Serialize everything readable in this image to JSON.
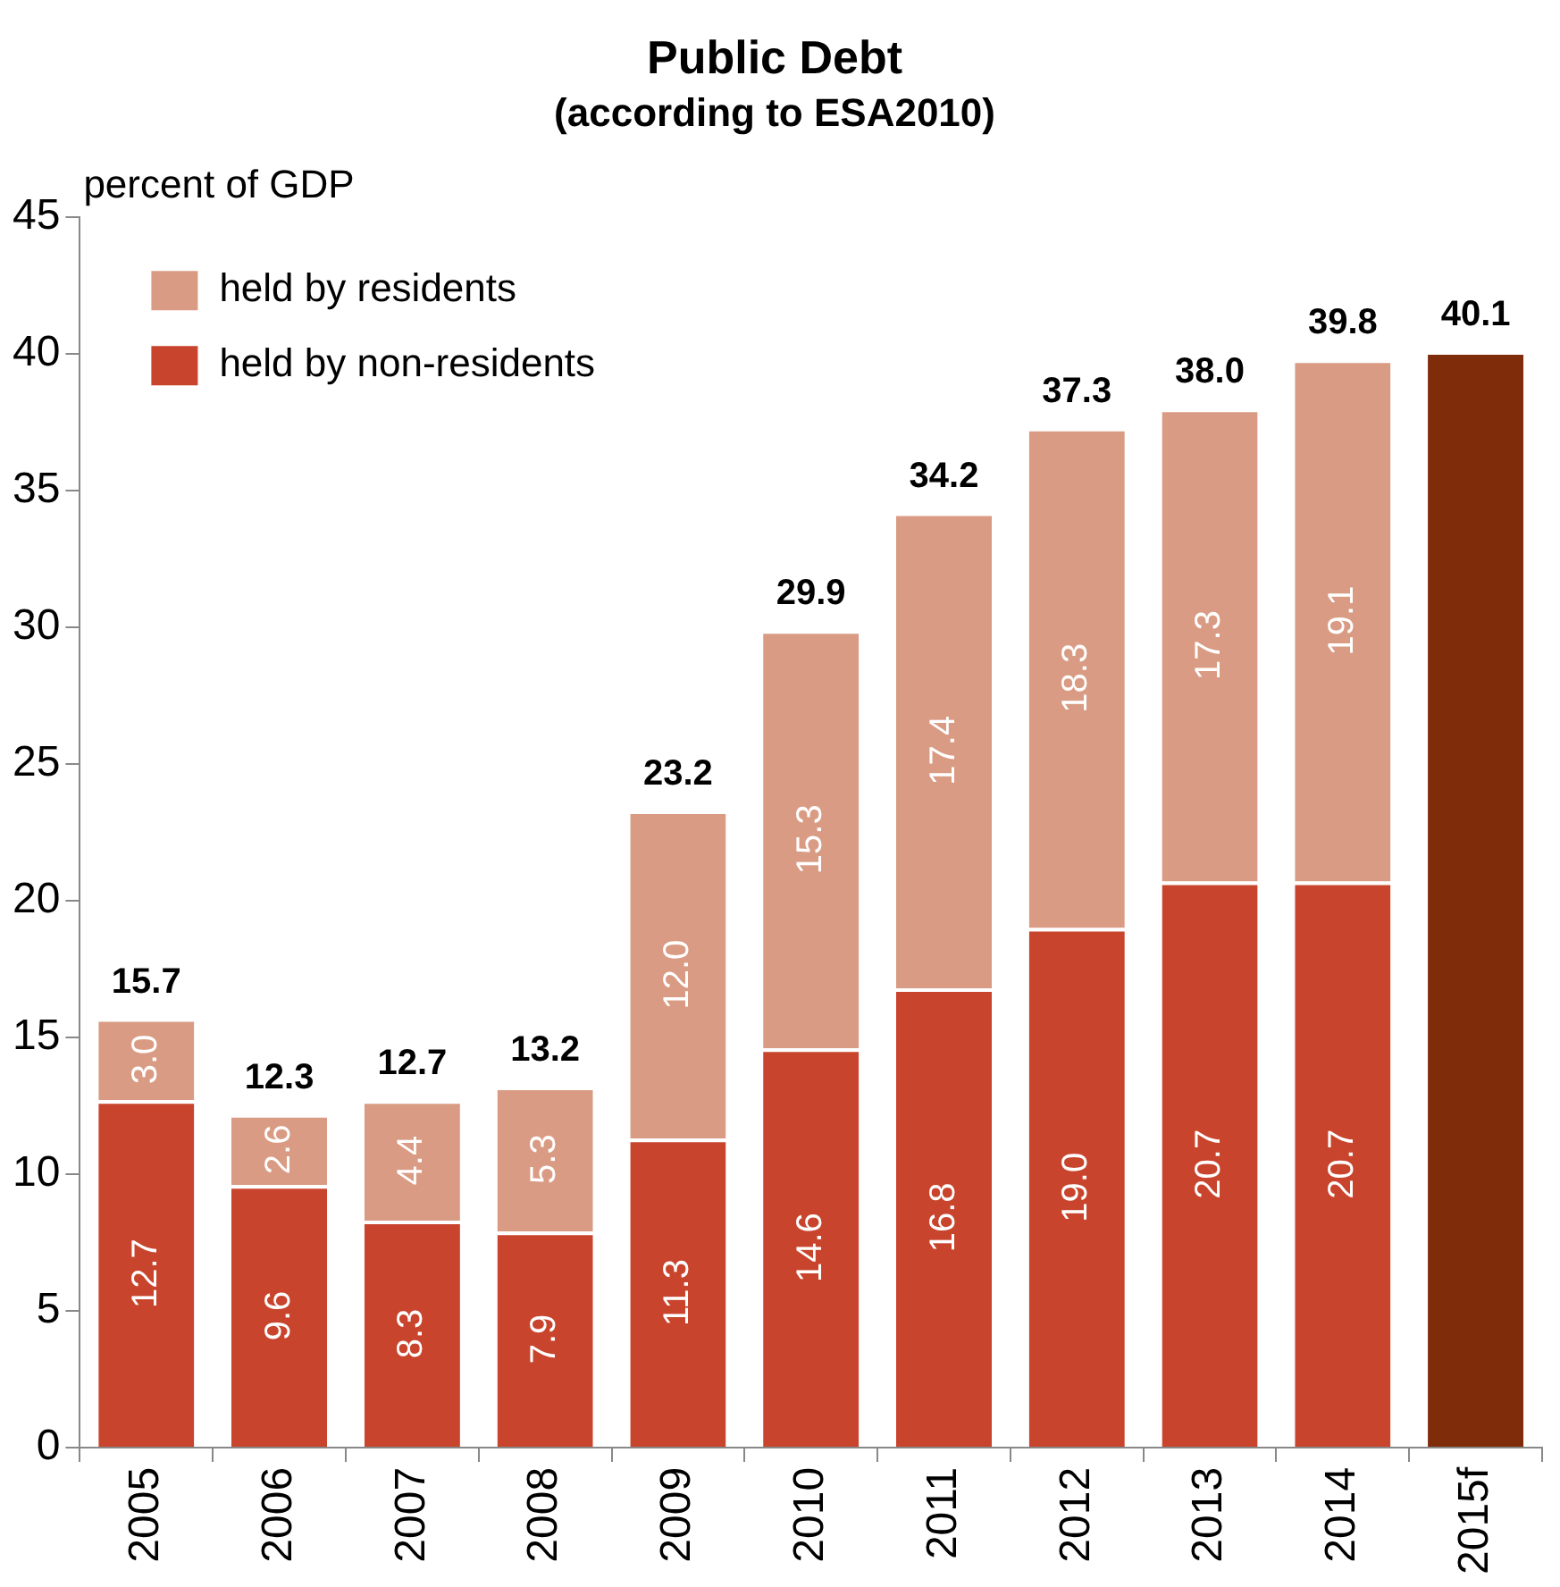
{
  "chart_data": {
    "type": "bar",
    "title": "Public Debt",
    "subtitle": "(according to ESA2010)",
    "ylabel": "percent of GDP",
    "categories": [
      "2005",
      "2006",
      "2007",
      "2008",
      "2009",
      "2010",
      "2011",
      "2012",
      "2013",
      "2014",
      "2015f"
    ],
    "stacked": true,
    "ylim": [
      0,
      45
    ],
    "yticks": [
      0,
      5,
      10,
      15,
      20,
      25,
      30,
      35,
      40,
      45
    ],
    "grid": false,
    "legend": "top left",
    "series": [
      {
        "name": "held by non-residents",
        "color": "#c8442c",
        "values": [
          12.7,
          9.6,
          8.3,
          7.9,
          11.3,
          14.6,
          16.8,
          19.0,
          20.7,
          20.7,
          null
        ],
        "value_labels": [
          "12.7",
          "9.6",
          "8.3",
          "7.9",
          "11.3",
          "14.6",
          "16.8",
          "19.0",
          "20.7",
          "20.7",
          null
        ]
      },
      {
        "name": "held by residents",
        "color": "#d99b83",
        "values": [
          3.0,
          2.6,
          4.4,
          5.3,
          12.0,
          15.3,
          17.4,
          18.3,
          17.3,
          19.1,
          null
        ],
        "value_labels": [
          "3.0",
          "2.6",
          "4.4",
          "5.3",
          "12.0",
          "15.3",
          "17.4",
          "18.3",
          "17.3",
          "19.1",
          null
        ]
      },
      {
        "color": "#7f2c0b",
        "values": [
          null,
          null,
          null,
          null,
          null,
          null,
          null,
          null,
          null,
          null,
          40.1
        ]
      }
    ],
    "totals": [
      "15.7",
      "12.3",
      "12.7",
      "13.2",
      "23.2",
      "29.9",
      "34.2",
      "37.3",
      "38.0",
      "39.8",
      "40.1"
    ]
  }
}
